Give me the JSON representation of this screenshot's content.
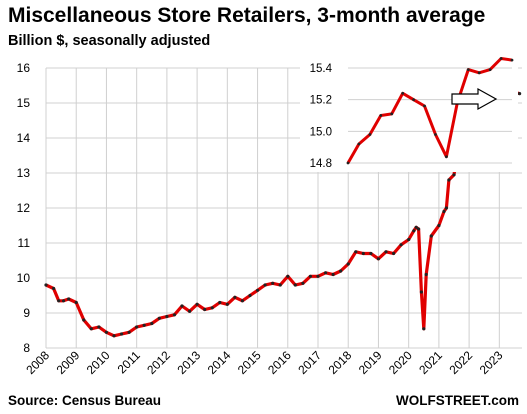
{
  "title": "Miscellaneous Store Retailers, 3-month average",
  "subtitle": "Billion $, seasonally adjusted",
  "source": "Source: Census Bureau",
  "credit": "WOLFSTREET.com",
  "colors": {
    "line": "#e00000",
    "marker": "#222222",
    "grid": "#d0d0d0",
    "arrow": "#000000"
  },
  "chart_data": [
    {
      "type": "line",
      "ylim": [
        8,
        16
      ],
      "xlim": [
        2008,
        2023.75
      ],
      "y_ticks": [
        "8",
        "9",
        "10",
        "11",
        "12",
        "13",
        "14",
        "15",
        "16"
      ],
      "x_ticks": [
        "2008",
        "2009",
        "2010",
        "2011",
        "2012",
        "2013",
        "2014",
        "2015",
        "2016",
        "2017",
        "2018",
        "2019",
        "2020",
        "2021",
        "2022",
        "2023"
      ],
      "grid": true,
      "x": [
        2008.0,
        2008.25,
        2008.42,
        2008.58,
        2008.75,
        2009.0,
        2009.25,
        2009.5,
        2009.75,
        2010.0,
        2010.25,
        2010.5,
        2010.75,
        2011.0,
        2011.25,
        2011.5,
        2011.75,
        2012.0,
        2012.25,
        2012.5,
        2012.75,
        2013.0,
        2013.25,
        2013.5,
        2013.75,
        2014.0,
        2014.25,
        2014.5,
        2014.75,
        2015.0,
        2015.25,
        2015.5,
        2015.75,
        2016.0,
        2016.25,
        2016.5,
        2016.75,
        2017.0,
        2017.25,
        2017.5,
        2017.75,
        2018.0,
        2018.25,
        2018.5,
        2018.75,
        2019.0,
        2019.25,
        2019.5,
        2019.75,
        2020.0,
        2020.17,
        2020.25,
        2020.33,
        2020.42,
        2020.5,
        2020.58,
        2020.75,
        2021.0,
        2021.17,
        2021.25,
        2021.33,
        2021.5,
        2021.67,
        2021.83,
        2022.0,
        2022.17,
        2022.33,
        2022.5,
        2022.67,
        2022.83,
        2023.0,
        2023.17,
        2023.33,
        2023.5,
        2023.67
      ],
      "values": [
        9.8,
        9.7,
        9.35,
        9.35,
        9.4,
        9.3,
        8.8,
        8.55,
        8.6,
        8.45,
        8.35,
        8.4,
        8.45,
        8.6,
        8.65,
        8.7,
        8.85,
        8.9,
        8.95,
        9.2,
        9.05,
        9.25,
        9.1,
        9.15,
        9.3,
        9.25,
        9.45,
        9.35,
        9.5,
        9.65,
        9.8,
        9.85,
        9.8,
        10.05,
        9.8,
        9.85,
        10.05,
        10.05,
        10.15,
        10.1,
        10.2,
        10.4,
        10.75,
        10.7,
        10.7,
        10.55,
        10.75,
        10.7,
        10.95,
        11.1,
        11.35,
        11.45,
        11.4,
        9.6,
        8.55,
        10.1,
        11.2,
        11.5,
        11.9,
        12.0,
        12.8,
        12.95,
        13.9,
        14.6,
        14.85,
        15.1,
        15.2,
        15.25,
        15.15,
        15.25,
        15.1,
        15.25,
        15.25,
        15.3,
        15.27
      ]
    },
    {
      "type": "line",
      "ylim": [
        14.8,
        15.4
      ],
      "y_ticks": [
        "14.8",
        "15.0",
        "15.2",
        "15.4"
      ],
      "x": [
        0,
        1,
        2,
        3,
        4,
        5,
        6,
        7,
        8,
        9,
        10,
        11,
        12,
        13,
        14,
        15
      ],
      "values": [
        14.8,
        14.92,
        14.98,
        15.1,
        15.11,
        15.24,
        15.2,
        15.16,
        14.98,
        14.84,
        15.18,
        15.39,
        15.37,
        15.39,
        15.46,
        15.45
      ],
      "grid": true
    }
  ]
}
